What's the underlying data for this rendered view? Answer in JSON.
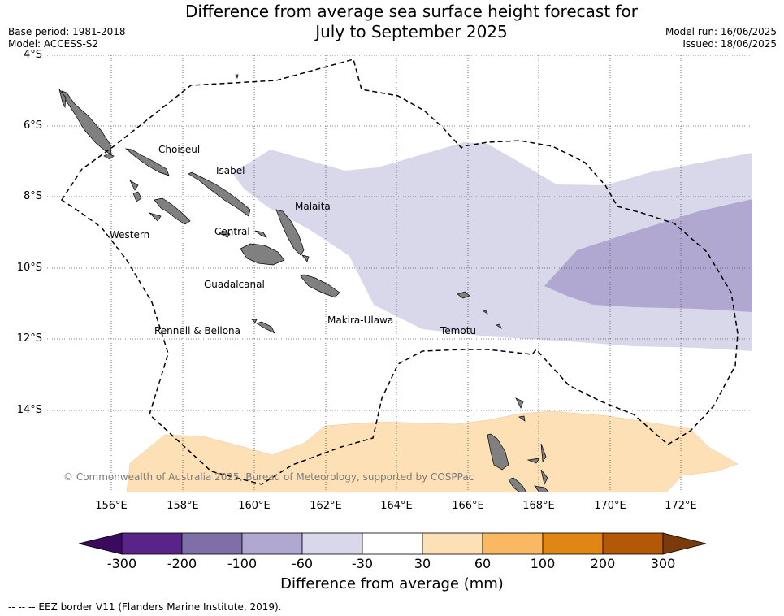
{
  "header": {
    "title_line1": "Difference from average sea surface height forecast for",
    "title_line2": "July to September 2025",
    "base_period": "Base period: 1981-2018",
    "model": "Model: ACCESS-S2",
    "model_run": "Model run: 16/06/2025",
    "issued": "Issued: 18/06/2025"
  },
  "map": {
    "lat_labels": [
      "4°S",
      "6°S",
      "8°S",
      "10°S",
      "12°S",
      "14°S"
    ],
    "lon_labels": [
      "156°E",
      "158°E",
      "160°E",
      "162°E",
      "164°E",
      "166°E",
      "168°E",
      "170°E",
      "172°E"
    ],
    "regions": {
      "choiseul": "Choiseul",
      "isabel": "Isabel",
      "malaita": "Malaita",
      "western": "Western",
      "central": "Central",
      "guadalcanal": "Guadalcanal",
      "makira": "Makira-Ulawa",
      "temotu": "Temotu",
      "rennell": "Rennell & Bellona"
    },
    "copyright": "© Commonwealth of Australia 2025, Bureau of Meteorology, supported by COSPPac",
    "colors": {
      "land": "#808080",
      "band_-60_-30": "#d8d8ea",
      "band_-100_-60": "#b0a8d0",
      "band_30_60": "#fde0b6",
      "eez_border": "#000000"
    }
  },
  "colorbar": {
    "ticks": [
      "-300",
      "-200",
      "-100",
      "-60",
      "-30",
      "30",
      "60",
      "100",
      "200",
      "300"
    ],
    "colors": [
      "#3b0a5c",
      "#5a2388",
      "#7f6fa8",
      "#b0a8d0",
      "#d8d8ea",
      "#ffffff",
      "#fde0b6",
      "#fbb862",
      "#e08614",
      "#b35806",
      "#7a3a0a"
    ],
    "title": "Difference from average (mm)"
  },
  "footer": {
    "eez_note": "--  --  -- EEZ border V11 (Flanders Marine Institute, 2019)."
  }
}
